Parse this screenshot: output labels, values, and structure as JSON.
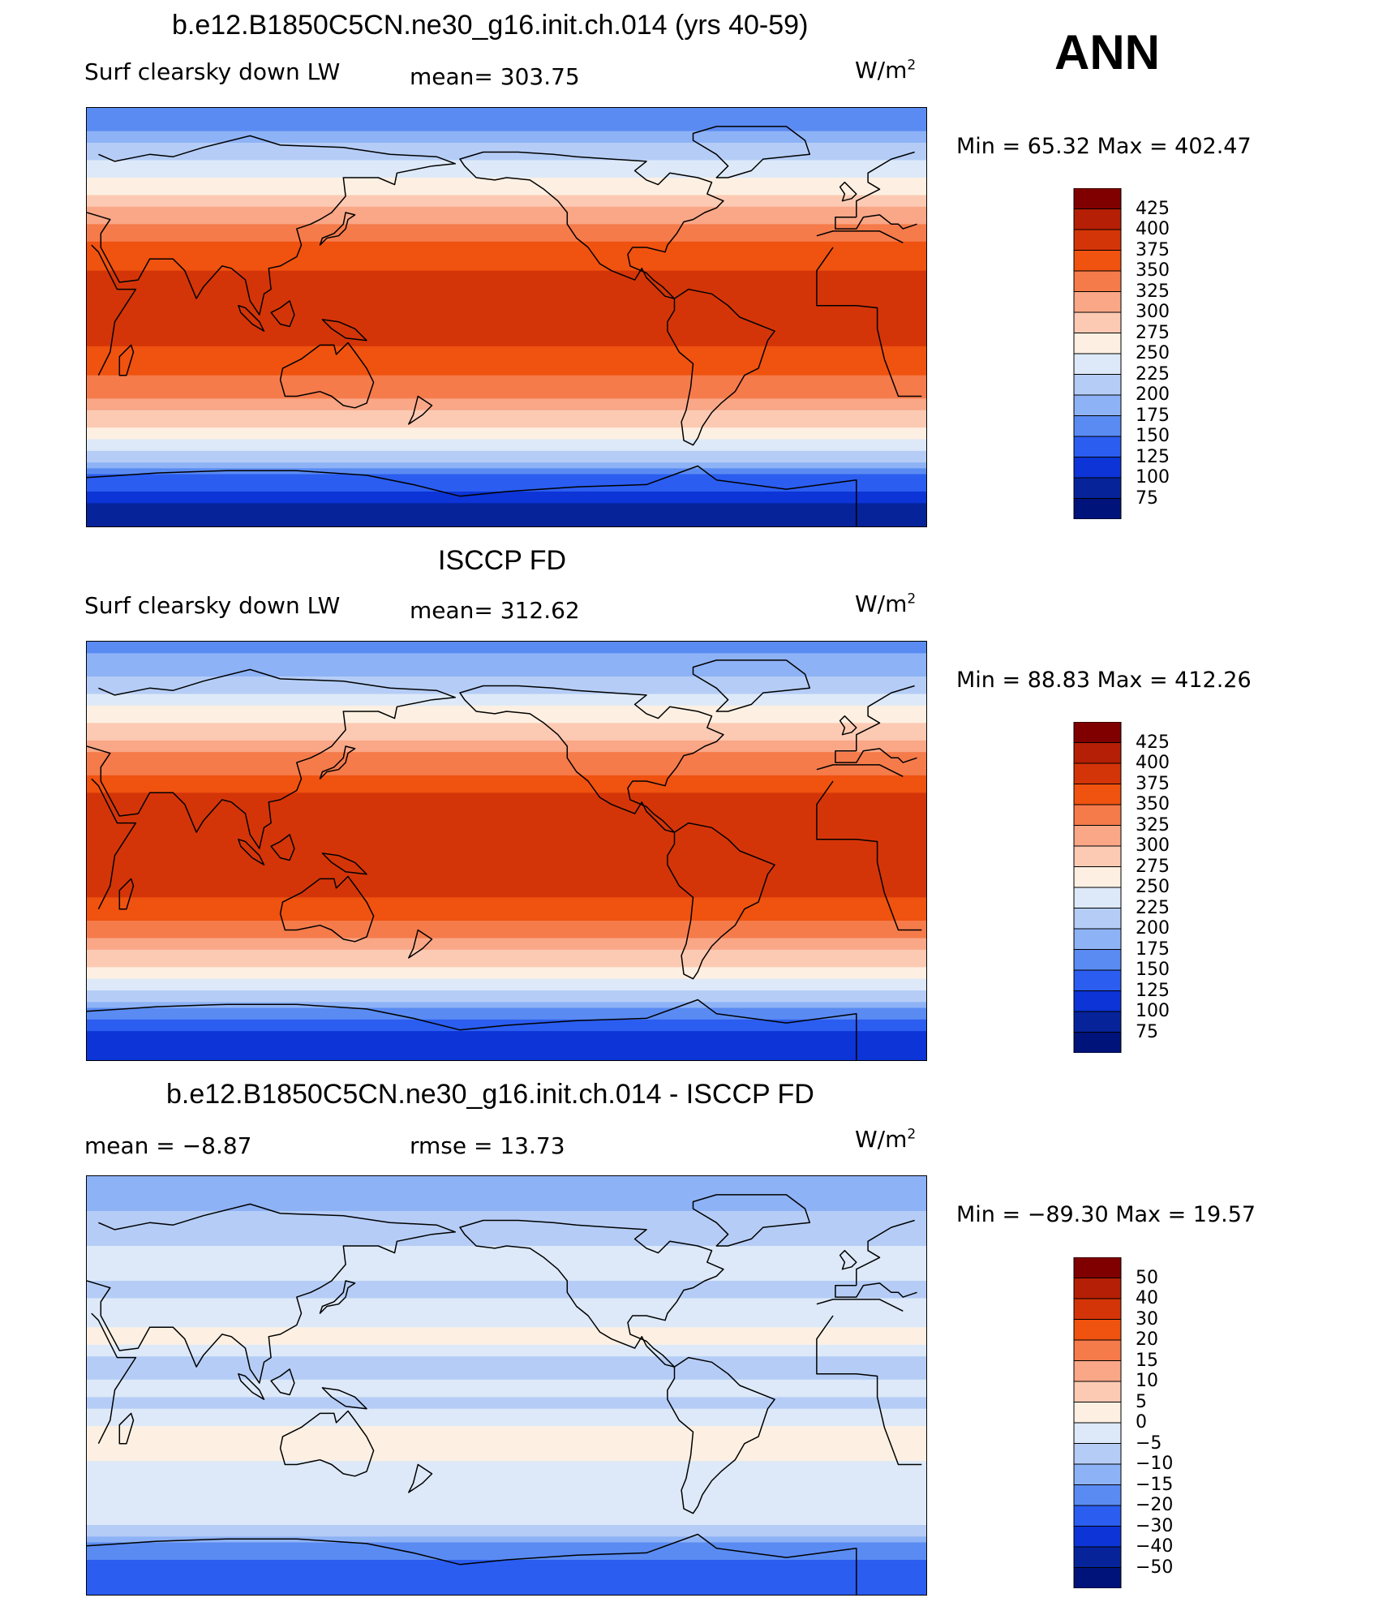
{
  "header": {
    "season": "ANN"
  },
  "units": "W/m",
  "units_sup": "2",
  "panels": [
    {
      "title": "b.e12.B1850C5CN.ne30_g16.init.ch.014 (yrs 40-59)",
      "left_label": "Surf clearsky down LW",
      "mid_label": "mean=  303.75",
      "minmax": "Min =   65.32  Max  =  402.47",
      "colorbar": "abs"
    },
    {
      "title": "ISCCP FD",
      "left_label": "Surf clearsky down LW",
      "mid_label": "mean=  312.62",
      "minmax": "Min =   88.83  Max  =  412.26",
      "colorbar": "abs"
    },
    {
      "title": "b.e12.B1850C5CN.ne30_g16.init.ch.014 - ISCCP FD",
      "left_label": "mean  =    −8.87",
      "mid_label": "rmse  =    13.73",
      "minmax": "Min  =  −89.30  Max  =    19.57",
      "colorbar": "diff"
    }
  ],
  "chart_data": [
    {
      "type": "heatmap",
      "title": "b.e12.B1850C5CN.ne30_g16.init.ch.014 (yrs 40-59)",
      "variable": "Surf clearsky down LW",
      "units": "W/m2",
      "mean": 303.75,
      "min": 65.32,
      "max": 402.47,
      "zonal_profile": [
        {
          "lat": 90,
          "value": 150
        },
        {
          "lat": 80,
          "value": 175
        },
        {
          "lat": 70,
          "value": 215
        },
        {
          "lat": 60,
          "value": 250
        },
        {
          "lat": 50,
          "value": 285
        },
        {
          "lat": 40,
          "value": 325
        },
        {
          "lat": 30,
          "value": 355
        },
        {
          "lat": 20,
          "value": 375
        },
        {
          "lat": 10,
          "value": 385
        },
        {
          "lat": 0,
          "value": 385
        },
        {
          "lat": -10,
          "value": 380
        },
        {
          "lat": -20,
          "value": 365
        },
        {
          "lat": -30,
          "value": 340
        },
        {
          "lat": -40,
          "value": 300
        },
        {
          "lat": -50,
          "value": 260
        },
        {
          "lat": -60,
          "value": 215
        },
        {
          "lat": -70,
          "value": 140
        },
        {
          "lat": -80,
          "value": 100
        },
        {
          "lat": -90,
          "value": 85
        }
      ],
      "colorbar_levels": [
        75,
        100,
        125,
        150,
        175,
        200,
        225,
        250,
        275,
        300,
        325,
        350,
        375,
        400,
        425
      ]
    },
    {
      "type": "heatmap",
      "title": "ISCCP FD",
      "variable": "Surf clearsky down LW",
      "units": "W/m2",
      "mean": 312.62,
      "min": 88.83,
      "max": 412.26,
      "zonal_profile": [
        {
          "lat": 90,
          "value": 160
        },
        {
          "lat": 80,
          "value": 185
        },
        {
          "lat": 70,
          "value": 220
        },
        {
          "lat": 60,
          "value": 255
        },
        {
          "lat": 50,
          "value": 290
        },
        {
          "lat": 40,
          "value": 330
        },
        {
          "lat": 30,
          "value": 360
        },
        {
          "lat": 20,
          "value": 385
        },
        {
          "lat": 10,
          "value": 395
        },
        {
          "lat": 0,
          "value": 395
        },
        {
          "lat": -10,
          "value": 390
        },
        {
          "lat": -20,
          "value": 375
        },
        {
          "lat": -30,
          "value": 350
        },
        {
          "lat": -40,
          "value": 310
        },
        {
          "lat": -50,
          "value": 270
        },
        {
          "lat": -60,
          "value": 230
        },
        {
          "lat": -70,
          "value": 160
        },
        {
          "lat": -80,
          "value": 115
        },
        {
          "lat": -90,
          "value": 100
        }
      ],
      "colorbar_levels": [
        75,
        100,
        125,
        150,
        175,
        200,
        225,
        250,
        275,
        300,
        325,
        350,
        375,
        400,
        425
      ]
    },
    {
      "type": "heatmap",
      "title": "b.e12.B1850C5CN.ne30_g16.init.ch.014 - ISCCP FD",
      "units": "W/m2",
      "mean": -8.87,
      "rmse": 13.73,
      "min": -89.3,
      "max": 19.57,
      "zonal_profile": [
        {
          "lat": 90,
          "value": -15
        },
        {
          "lat": 80,
          "value": -12
        },
        {
          "lat": 70,
          "value": -8
        },
        {
          "lat": 60,
          "value": -5
        },
        {
          "lat": 50,
          "value": -4
        },
        {
          "lat": 40,
          "value": -6
        },
        {
          "lat": 30,
          "value": -3
        },
        {
          "lat": 20,
          "value": 2
        },
        {
          "lat": 10,
          "value": -7
        },
        {
          "lat": 0,
          "value": -4
        },
        {
          "lat": -10,
          "value": -6
        },
        {
          "lat": -20,
          "value": 3
        },
        {
          "lat": -30,
          "value": 1
        },
        {
          "lat": -40,
          "value": -3
        },
        {
          "lat": -50,
          "value": -2
        },
        {
          "lat": -60,
          "value": -4
        },
        {
          "lat": -70,
          "value": -18
        },
        {
          "lat": -80,
          "value": -22
        },
        {
          "lat": -90,
          "value": -20
        }
      ],
      "colorbar_levels": [
        -50,
        -40,
        -30,
        -20,
        -15,
        -10,
        -5,
        0,
        5,
        10,
        15,
        20,
        30,
        40,
        50
      ]
    }
  ],
  "colorbars": {
    "abs": {
      "labels": [
        "425",
        "400",
        "375",
        "350",
        "325",
        "300",
        "275",
        "250",
        "225",
        "200",
        "175",
        "150",
        "125",
        "100",
        "75"
      ],
      "colors": [
        "#800000",
        "#b51f05",
        "#d43508",
        "#f0520f",
        "#f57b4b",
        "#f9a787",
        "#fccab3",
        "#fdf0e2",
        "#dde9f8",
        "#b5cdf6",
        "#8eb2f6",
        "#5a8bf2",
        "#2b5df0",
        "#0c34d6",
        "#06239a",
        "#00137a"
      ]
    },
    "diff": {
      "labels": [
        "50",
        "40",
        "30",
        "20",
        "15",
        "10",
        "5",
        "0",
        "−5",
        "−10",
        "−15",
        "−20",
        "−30",
        "−40",
        "−50"
      ],
      "colors": [
        "#800000",
        "#b51f05",
        "#d43508",
        "#f0520f",
        "#f57b4b",
        "#f9a787",
        "#fccab3",
        "#fdf0e2",
        "#dde9f8",
        "#b5cdf6",
        "#8eb2f6",
        "#5a8bf2",
        "#2b5df0",
        "#0c34d6",
        "#06239a",
        "#00137a"
      ]
    }
  }
}
